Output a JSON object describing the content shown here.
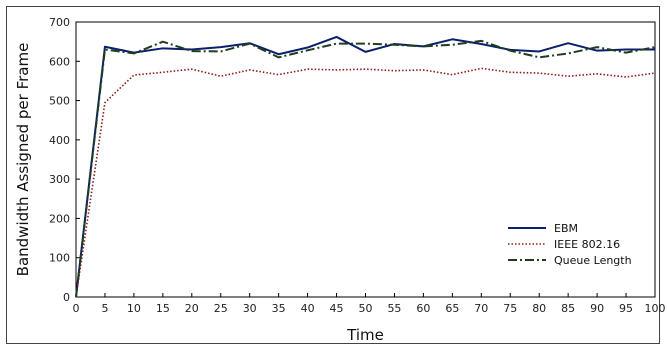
{
  "chart_data": {
    "type": "line",
    "xlabel": "Time",
    "ylabel": "Bandwidth Assigned per Frame",
    "xlim": [
      0,
      100
    ],
    "ylim": [
      0,
      700
    ],
    "xticks": [
      0,
      5,
      10,
      15,
      20,
      25,
      30,
      35,
      40,
      45,
      50,
      55,
      60,
      65,
      70,
      75,
      80,
      85,
      90,
      95,
      100
    ],
    "yticks": [
      0,
      100,
      200,
      300,
      400,
      500,
      600,
      700
    ],
    "grid": false,
    "legend_position": "lower-right",
    "x": [
      0,
      5,
      10,
      15,
      20,
      25,
      30,
      35,
      40,
      45,
      50,
      55,
      60,
      65,
      70,
      75,
      80,
      85,
      90,
      95,
      100
    ],
    "series": [
      {
        "name": "EBM",
        "color": "#0b1f6b",
        "style": "solid",
        "values": [
          0,
          637,
          622,
          633,
          630,
          636,
          646,
          618,
          635,
          662,
          624,
          644,
          638,
          656,
          644,
          629,
          625,
          646,
          627,
          630,
          630
        ]
      },
      {
        "name": "IEEE 802.16",
        "color": "#8b1a1a",
        "style": "dotted",
        "values": [
          0,
          495,
          565,
          572,
          580,
          562,
          578,
          566,
          580,
          578,
          580,
          576,
          578,
          566,
          582,
          572,
          570,
          562,
          568,
          560,
          570
        ]
      },
      {
        "name": "Queue Length",
        "color": "#1f3d1f",
        "style": "dashdot",
        "values": [
          0,
          630,
          620,
          650,
          626,
          625,
          645,
          610,
          628,
          645,
          645,
          642,
          638,
          642,
          652,
          627,
          610,
          620,
          636,
          622,
          636
        ]
      }
    ]
  }
}
